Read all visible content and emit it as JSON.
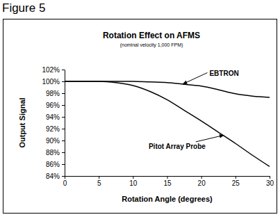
{
  "caption": "Figure 5",
  "chart_data": {
    "type": "line",
    "title": "Rotation Effect on AFMS",
    "subtitle": "(nominal velocity 1,000 FPM)",
    "x_label": "Rotation Angle (degrees)",
    "y_label": "Output Signal",
    "x": [
      0,
      2.5,
      5,
      7.5,
      10,
      12.5,
      15,
      17.5,
      20,
      22.5,
      25,
      27.5,
      30
    ],
    "series": [
      {
        "color": "#000000",
        "values": [
          100,
          100,
          100,
          100,
          100,
          99.9,
          99.8,
          99.5,
          99.2,
          98.6,
          97.9,
          97.5,
          97.3
        ]
      },
      {
        "color": "#000000",
        "values": [
          100,
          100,
          100,
          99.8,
          99.3,
          98.3,
          96.9,
          95.1,
          93.3,
          91.4,
          89.5,
          87.5,
          85.6
        ]
      }
    ],
    "xlim": [
      0,
      30
    ],
    "xticks": [
      0,
      5,
      10,
      15,
      20,
      25,
      30
    ],
    "ylim": [
      84,
      102
    ],
    "yticks": [
      {
        "value": 84,
        "label": "84%"
      },
      {
        "value": 86,
        "label": "86%"
      },
      {
        "value": 88,
        "label": "88%"
      },
      {
        "value": 90,
        "label": "90%"
      },
      {
        "value": 92,
        "label": "92%"
      },
      {
        "value": 94,
        "label": "94%"
      },
      {
        "value": 96,
        "label": "96%"
      },
      {
        "value": 98,
        "label": "98%"
      },
      {
        "value": 100,
        "label": "100%"
      },
      {
        "value": 102,
        "label": "102%"
      }
    ],
    "grid": false,
    "annotations": [
      {
        "text": "EBTRON",
        "x": 21.2,
        "y": 101.0,
        "arrow_x": 17.3,
        "arrow_y": 99.55
      },
      {
        "text": "Pitot Array Probe",
        "x": 12.3,
        "y": 88.6,
        "arrow_x": 23.3,
        "arrow_y": 90.9
      }
    ]
  }
}
